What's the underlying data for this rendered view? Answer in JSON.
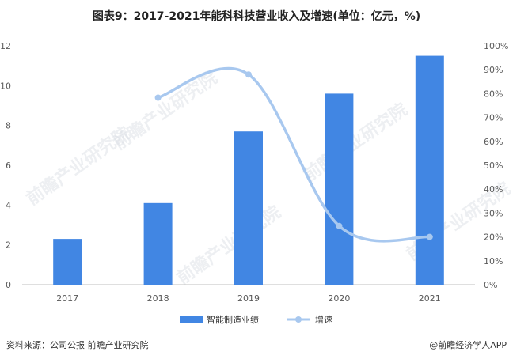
{
  "title": "图表9：2017-2021年能科科技营业收入及增速(单位：亿元，%)",
  "footer": {
    "source": "资料来源：公司公报 前瞻产业研究院",
    "brand": "@前瞻经济学人APP"
  },
  "watermark": "前瞻产业研究院",
  "colors": {
    "bar": "#4186e3",
    "line": "#a8c8ef"
  },
  "chart_data": {
    "type": "bar+line",
    "categories": [
      "2017",
      "2018",
      "2019",
      "2020",
      "2021"
    ],
    "series": [
      {
        "name": "智能制造业绩",
        "type": "bar",
        "axis": "left",
        "values": [
          2.3,
          4.1,
          7.7,
          9.6,
          11.5
        ]
      },
      {
        "name": "增速",
        "type": "line",
        "axis": "right",
        "values": [
          null,
          78.3,
          88.0,
          24.6,
          20.0
        ]
      }
    ],
    "y_left": {
      "min": 0,
      "max": 12,
      "ticks": [
        "0",
        "2",
        "4",
        "6",
        "8",
        "10",
        "12"
      ]
    },
    "y_right": {
      "min": 0,
      "max": 100,
      "ticks": [
        "0%",
        "10%",
        "20%",
        "30%",
        "40%",
        "50%",
        "60%",
        "70%",
        "80%",
        "90%",
        "100%"
      ]
    },
    "legend_position": "bottom",
    "grid": false
  }
}
